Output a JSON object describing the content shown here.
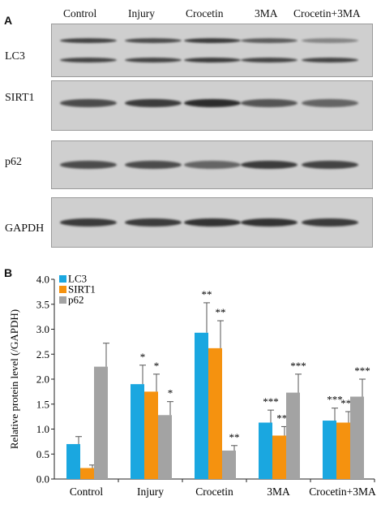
{
  "panelA": {
    "letter": "A",
    "columns": [
      "Control",
      "Injury",
      "Crocetin",
      "3MA",
      "Crocetin+3MA"
    ],
    "rows": [
      {
        "label": "LC3",
        "bands": [
          {
            "col": 0,
            "row": 0,
            "intensity": 0.85
          },
          {
            "col": 1,
            "row": 0,
            "intensity": 0.8
          },
          {
            "col": 2,
            "row": 0,
            "intensity": 0.9
          },
          {
            "col": 3,
            "row": 0,
            "intensity": 0.7
          },
          {
            "col": 4,
            "row": 0,
            "intensity": 0.45
          },
          {
            "col": 0,
            "row": 1,
            "intensity": 0.85
          },
          {
            "col": 1,
            "row": 1,
            "intensity": 0.85
          },
          {
            "col": 2,
            "row": 1,
            "intensity": 0.9
          },
          {
            "col": 3,
            "row": 1,
            "intensity": 0.85
          },
          {
            "col": 4,
            "row": 1,
            "intensity": 0.85
          }
        ]
      },
      {
        "label": "SIRT1",
        "bands": [
          {
            "col": 0,
            "row": 0,
            "intensity": 0.8
          },
          {
            "col": 1,
            "row": 0,
            "intensity": 0.9
          },
          {
            "col": 2,
            "row": 0,
            "intensity": 1.0
          },
          {
            "col": 3,
            "row": 0,
            "intensity": 0.75
          },
          {
            "col": 4,
            "row": 0,
            "intensity": 0.65
          }
        ]
      },
      {
        "label": "p62",
        "bands": [
          {
            "col": 0,
            "row": 0,
            "intensity": 0.8
          },
          {
            "col": 1,
            "row": 0,
            "intensity": 0.8
          },
          {
            "col": 2,
            "row": 0,
            "intensity": 0.65
          },
          {
            "col": 3,
            "row": 0,
            "intensity": 0.9
          },
          {
            "col": 4,
            "row": 0,
            "intensity": 0.85
          }
        ]
      },
      {
        "label": "GAPDH",
        "bands": [
          {
            "col": 0,
            "row": 0,
            "intensity": 0.9
          },
          {
            "col": 1,
            "row": 0,
            "intensity": 0.9
          },
          {
            "col": 2,
            "row": 0,
            "intensity": 0.95
          },
          {
            "col": 3,
            "row": 0,
            "intensity": 0.95
          },
          {
            "col": 4,
            "row": 0,
            "intensity": 0.9
          }
        ]
      }
    ]
  },
  "panelB": {
    "letter": "B"
  },
  "colors": {
    "LC3": "#1aa7e0",
    "SIRT1": "#f5920f",
    "p62": "#a3a3a3",
    "errorbar": "#555555"
  },
  "chart_data": {
    "type": "bar",
    "categories": [
      "Control",
      "Injury",
      "Crocetin",
      "3MA",
      "Crocetin+3MA"
    ],
    "ylabel": "Relative protein level (/GAPDH)",
    "xlabel": "",
    "ylim": [
      0,
      4.0
    ],
    "yticks": [
      "0.0",
      "0.5",
      "1.0",
      "1.5",
      "2.0",
      "2.5",
      "3.0",
      "3.5",
      "4.0"
    ],
    "legend_position": "top-left",
    "series": [
      {
        "name": "LC3",
        "values": [
          0.7,
          1.9,
          2.93,
          1.13,
          1.17
        ],
        "errors": [
          0.15,
          0.38,
          0.6,
          0.25,
          0.25
        ],
        "annotations": [
          "",
          "*",
          "**",
          "***",
          "***"
        ]
      },
      {
        "name": "SIRT1",
        "values": [
          0.22,
          1.75,
          2.62,
          0.87,
          1.13
        ],
        "errors": [
          0.06,
          0.35,
          0.55,
          0.18,
          0.22
        ],
        "annotations": [
          "",
          "*",
          "**",
          "***",
          "***"
        ]
      },
      {
        "name": "p62",
        "values": [
          2.25,
          1.28,
          0.57,
          1.73,
          1.65
        ],
        "errors": [
          0.47,
          0.27,
          0.1,
          0.37,
          0.35
        ],
        "annotations": [
          "",
          "*",
          "**",
          "***",
          "***"
        ]
      }
    ]
  }
}
